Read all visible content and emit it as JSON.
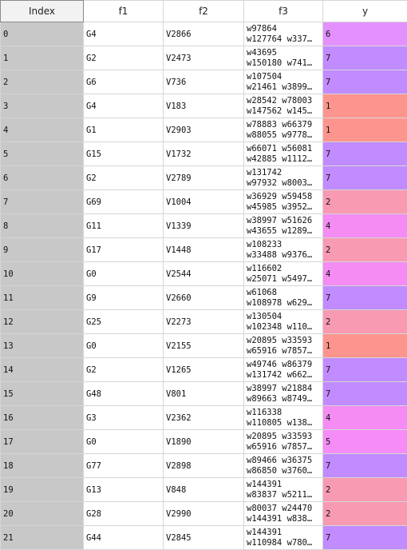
{
  "table": {
    "columns": [
      "Index",
      "f1",
      "f2",
      "f3",
      "y"
    ],
    "rows": [
      {
        "index": "0",
        "f1": "G4",
        "f2": "V2866",
        "f3_line1": "w97864",
        "f3_line2": "w127764 w337…",
        "y": "6"
      },
      {
        "index": "1",
        "f1": "G2",
        "f2": "V2473",
        "f3_line1": "w43695",
        "f3_line2": "w150180 w741…",
        "y": "7"
      },
      {
        "index": "2",
        "f1": "G6",
        "f2": "V736",
        "f3_line1": "w107504",
        "f3_line2": "w21461 w3899…",
        "y": "7"
      },
      {
        "index": "3",
        "f1": "G4",
        "f2": "V183",
        "f3_line1": "w28542 w78003",
        "f3_line2": "w147562 w145…",
        "y": "1"
      },
      {
        "index": "4",
        "f1": "G1",
        "f2": "V2903",
        "f3_line1": "w78883 w66379",
        "f3_line2": "w88055 w9778…",
        "y": "1"
      },
      {
        "index": "5",
        "f1": "G15",
        "f2": "V1732",
        "f3_line1": "w66071 w56081",
        "f3_line2": "w42885 w1112…",
        "y": "7"
      },
      {
        "index": "6",
        "f1": "G2",
        "f2": "V2789",
        "f3_line1": "w131742",
        "f3_line2": "w97932 w8003…",
        "y": "7"
      },
      {
        "index": "7",
        "f1": "G69",
        "f2": "V1004",
        "f3_line1": "w36929 w59458",
        "f3_line2": "w45985 w3952…",
        "y": "2"
      },
      {
        "index": "8",
        "f1": "G11",
        "f2": "V1339",
        "f3_line1": "w38997 w51626",
        "f3_line2": "w43655 w1289…",
        "y": "4"
      },
      {
        "index": "9",
        "f1": "G17",
        "f2": "V1448",
        "f3_line1": "w108233",
        "f3_line2": "w33488 w9376…",
        "y": "2"
      },
      {
        "index": "10",
        "f1": "G0",
        "f2": "V2544",
        "f3_line1": "w116602",
        "f3_line2": "w25071 w5497…",
        "y": "4"
      },
      {
        "index": "11",
        "f1": "G9",
        "f2": "V2660",
        "f3_line1": "w61068",
        "f3_line2": "w108978 w629…",
        "y": "7"
      },
      {
        "index": "12",
        "f1": "G25",
        "f2": "V2273",
        "f3_line1": "w130504",
        "f3_line2": "w102348 w110…",
        "y": "2"
      },
      {
        "index": "13",
        "f1": "G0",
        "f2": "V2155",
        "f3_line1": "w20895 w33593",
        "f3_line2": "w65916 w7857…",
        "y": "1"
      },
      {
        "index": "14",
        "f1": "G2",
        "f2": "V1265",
        "f3_line1": "w49746 w86379",
        "f3_line2": "w131742 w662…",
        "y": "7"
      },
      {
        "index": "15",
        "f1": "G48",
        "f2": "V801",
        "f3_line1": "w38997 w21884",
        "f3_line2": "w89663 w8749…",
        "y": "7"
      },
      {
        "index": "16",
        "f1": "G3",
        "f2": "V2362",
        "f3_line1": "w116338",
        "f3_line2": "w110805 w138…",
        "y": "4"
      },
      {
        "index": "17",
        "f1": "G0",
        "f2": "V1890",
        "f3_line1": "w20895 w33593",
        "f3_line2": "w65916 w7857…",
        "y": "5"
      },
      {
        "index": "18",
        "f1": "G77",
        "f2": "V2898",
        "f3_line1": "w89466 w36375",
        "f3_line2": "w86850 w3760…",
        "y": "7"
      },
      {
        "index": "19",
        "f1": "G13",
        "f2": "V848",
        "f3_line1": "w144391",
        "f3_line2": "w83837 w5211…",
        "y": "2"
      },
      {
        "index": "20",
        "f1": "G28",
        "f2": "V2990",
        "f3_line1": "w80037 w24470",
        "f3_line2": "w144391 w838…",
        "y": "2"
      },
      {
        "index": "21",
        "f1": "G44",
        "f2": "V2845",
        "f3_line1": "w144391",
        "f3_line2": "w110984 w780…",
        "y": "7"
      }
    ]
  },
  "colors": {
    "index_cell": "#c8c8c8",
    "y_1": "#fd958f",
    "y_2": "#f79ab2",
    "y_4": "#f48cf3",
    "y_5": "#f58cf7",
    "y_6": "#e391ff",
    "y_7": "#c18cff"
  }
}
